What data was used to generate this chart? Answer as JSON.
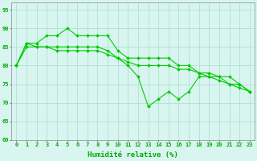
{
  "title": "",
  "xlabel": "Humidité relative (%)",
  "ylabel": "",
  "bg_color": "#d8f5f0",
  "grid_color": "#aaddcc",
  "line_color": "#00cc00",
  "xlim": [
    -0.5,
    23.5
  ],
  "ylim": [
    60,
    97
  ],
  "xticks": [
    0,
    1,
    2,
    3,
    4,
    5,
    6,
    7,
    8,
    9,
    10,
    11,
    12,
    13,
    14,
    15,
    16,
    17,
    18,
    19,
    20,
    21,
    22,
    23
  ],
  "yticks": [
    60,
    65,
    70,
    75,
    80,
    85,
    90,
    95
  ],
  "series1": [
    80,
    86,
    86,
    88,
    88,
    90,
    88,
    88,
    88,
    88,
    84,
    82,
    82,
    82,
    82,
    82,
    80,
    80,
    78,
    78,
    77,
    77,
    75,
    73
  ],
  "series2": [
    80,
    86,
    85,
    85,
    85,
    85,
    85,
    85,
    85,
    84,
    82,
    80,
    77,
    69,
    71,
    73,
    71,
    73,
    77,
    77,
    77,
    75,
    75,
    73
  ],
  "series3": [
    80,
    85,
    85,
    85,
    84,
    84,
    84,
    84,
    84,
    83,
    82,
    81,
    80,
    80,
    80,
    80,
    79,
    79,
    78,
    77,
    76,
    75,
    74,
    73
  ],
  "xlabel_fontsize": 6.5,
  "tick_fontsize": 5.0,
  "marker_size": 2.0,
  "line_width": 0.8
}
